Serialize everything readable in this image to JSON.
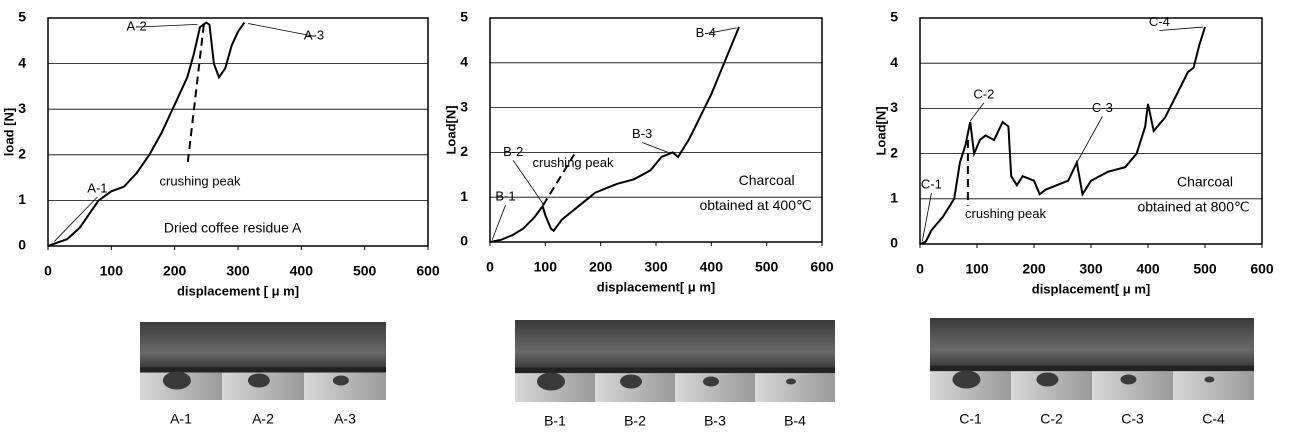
{
  "chart_data": [
    {
      "type": "line",
      "xlabel": "displacement [ μ m]",
      "ylabel": "load [N]",
      "x": [
        0,
        10,
        30,
        50,
        70,
        80,
        100,
        120,
        140,
        160,
        180,
        200,
        220,
        230,
        240,
        250,
        255,
        262,
        270,
        280,
        290,
        300,
        310
      ],
      "series": [
        {
          "color": "#000000",
          "values": [
            0,
            0.05,
            0.15,
            0.4,
            0.8,
            1.0,
            1.2,
            1.3,
            1.6,
            2.0,
            2.5,
            3.1,
            3.7,
            4.2,
            4.8,
            4.9,
            4.85,
            4.0,
            3.7,
            3.9,
            4.4,
            4.7,
            4.9
          ]
        }
      ],
      "xlim": [
        0,
        600
      ],
      "ylim": [
        0,
        5
      ],
      "xticks": [
        0,
        100,
        200,
        300,
        400,
        500,
        600
      ],
      "yticks": [
        0,
        1,
        2,
        3,
        4,
        5
      ],
      "grid": true,
      "annotations": [
        "A-1",
        "A-2",
        "A-3",
        "crushing peak"
      ],
      "note": [
        "Dried coffee residue A"
      ],
      "photo_labels": [
        "A-1",
        "A-2",
        "A-3"
      ]
    },
    {
      "type": "line",
      "xlabel": "displacement[ μ m]",
      "ylabel": "Load[N]",
      "x": [
        0,
        20,
        40,
        60,
        80,
        95,
        100,
        110,
        115,
        130,
        150,
        170,
        190,
        210,
        230,
        260,
        290,
        310,
        330,
        340,
        360,
        380,
        400,
        420,
        440,
        450
      ],
      "series": [
        {
          "color": "#000000",
          "values": [
            0,
            0.05,
            0.15,
            0.3,
            0.55,
            0.8,
            0.6,
            0.3,
            0.25,
            0.5,
            0.7,
            0.9,
            1.1,
            1.2,
            1.3,
            1.4,
            1.6,
            1.9,
            2.0,
            1.9,
            2.3,
            2.8,
            3.3,
            3.9,
            4.5,
            4.8
          ]
        }
      ],
      "xlim": [
        0,
        600
      ],
      "ylim": [
        0,
        5
      ],
      "xticks": [
        0,
        100,
        200,
        300,
        400,
        500,
        600
      ],
      "yticks": [
        0,
        1,
        2,
        3,
        4,
        5
      ],
      "grid": true,
      "annotations": [
        "B-1",
        "B-2",
        "crushing peak",
        "B-3",
        "B-4"
      ],
      "note": [
        "Charcoal",
        "obtained at 400℃"
      ],
      "photo_labels": [
        "B-1",
        "B-2",
        "B-3",
        "B-4"
      ]
    },
    {
      "type": "line",
      "xlabel": "displacement[ μ m]",
      "ylabel": "Load[N]",
      "x": [
        0,
        10,
        20,
        40,
        60,
        70,
        80,
        88,
        95,
        105,
        115,
        130,
        145,
        155,
        160,
        170,
        180,
        200,
        210,
        220,
        240,
        260,
        275,
        285,
        300,
        330,
        360,
        380,
        395,
        400,
        410,
        430,
        450,
        470,
        480,
        490,
        500
      ],
      "series": [
        {
          "color": "#000000",
          "values": [
            0,
            0.05,
            0.3,
            0.6,
            1.0,
            1.8,
            2.2,
            2.7,
            2.0,
            2.3,
            2.4,
            2.3,
            2.7,
            2.6,
            1.5,
            1.3,
            1.5,
            1.4,
            1.1,
            1.2,
            1.3,
            1.4,
            1.8,
            1.1,
            1.4,
            1.6,
            1.7,
            2.0,
            2.6,
            3.1,
            2.5,
            2.8,
            3.3,
            3.8,
            3.9,
            4.4,
            4.8
          ]
        }
      ],
      "xlim": [
        0,
        600
      ],
      "ylim": [
        0,
        5
      ],
      "xticks": [
        0,
        100,
        200,
        300,
        400,
        500,
        600
      ],
      "yticks": [
        0,
        1,
        2,
        3,
        4,
        5
      ],
      "grid": true,
      "annotations": [
        "C-1",
        "C-2",
        "C-3",
        "C-4",
        "crushing peak"
      ],
      "note": [
        "Charcoal",
        "obtained at 800℃"
      ],
      "photo_labels": [
        "C-1",
        "C-2",
        "C-3",
        "C-4"
      ]
    }
  ]
}
